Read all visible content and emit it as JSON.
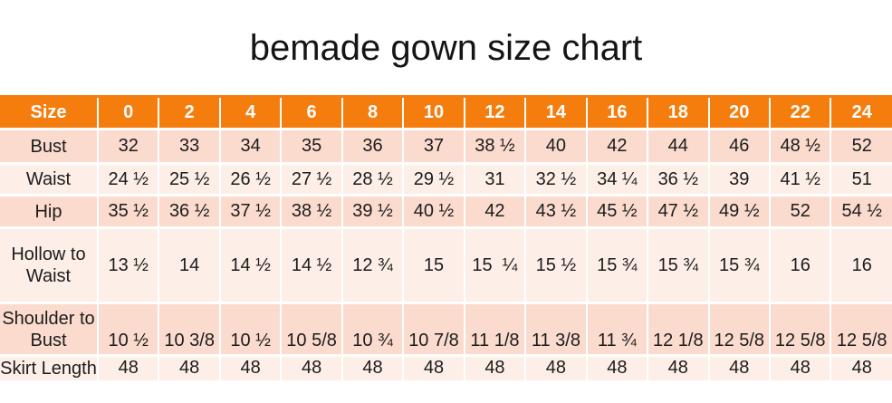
{
  "page": {
    "title": "bemade gown size chart"
  },
  "colors": {
    "header_bg": "#F57D0E",
    "band_dark": "#FADBCE",
    "band_light": "#FDEEE8",
    "header_text": "#FFFFFF",
    "cell_text": "#1C1C1C"
  },
  "chart_data": {
    "type": "table",
    "title": "bemade gown size chart",
    "columns": [
      "Size",
      "0",
      "2",
      "4",
      "6",
      "8",
      "10",
      "12",
      "14",
      "16",
      "18",
      "20",
      "22",
      "24"
    ],
    "rows": [
      {
        "label": "Bust",
        "values": [
          "32",
          "33",
          "34",
          "35",
          "36",
          "37",
          "38 ½",
          "40",
          "42",
          "44",
          "46",
          "48 ½",
          "52"
        ]
      },
      {
        "label": "Waist",
        "values": [
          "24 ½",
          "25 ½",
          "26 ½",
          "27 ½",
          "28 ½",
          "29 ½",
          "31",
          "32 ½",
          "34 ¼",
          "36 ½",
          "39",
          "41 ½",
          "51"
        ]
      },
      {
        "label": "Hip",
        "values": [
          "35 ½",
          "36 ½",
          "37 ½",
          "38 ½",
          "39 ½",
          "40 ½",
          "42",
          "43 ½",
          "45 ½",
          "47 ½",
          "49 ½",
          "52",
          "54 ½"
        ]
      },
      {
        "label": "Hollow to Waist",
        "values": [
          "13 ½",
          "14",
          "14 ½",
          "14 ½",
          "12 ¾",
          "15",
          "15  ¼",
          "15 ½",
          "15 ¾",
          "15 ¾",
          "15 ¾",
          "16",
          "16"
        ]
      },
      {
        "label": "Shoulder to Bust",
        "values": [
          "10 ½",
          "10 3/8",
          "10 ½",
          "10 5/8",
          "10 ¾",
          "10 7/8",
          "11 1/8",
          "11 3/8",
          "11 ¾",
          "12 1/8",
          "12 5/8",
          "12 5/8",
          "12 5/8"
        ]
      },
      {
        "label": "Skirt Length",
        "values": [
          "48",
          "48",
          "48",
          "48",
          "48",
          "48",
          "48",
          "48",
          "48",
          "48",
          "48",
          "48",
          "48"
        ]
      }
    ]
  }
}
